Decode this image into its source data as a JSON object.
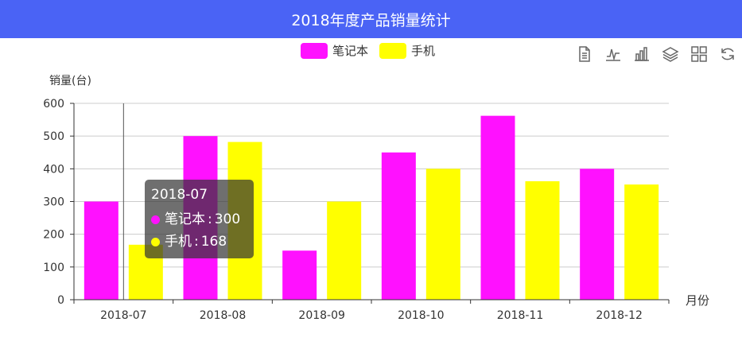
{
  "title": "2018年度产品销量统计",
  "toolbox": {
    "icons": [
      "data-view-icon",
      "line-chart-icon",
      "bar-chart-icon",
      "stack-icon",
      "tiled-icon",
      "restore-icon"
    ]
  },
  "tooltip": {
    "category": "2018-07",
    "rows": [
      {
        "name": "笔记本",
        "value": "300",
        "color": "#ff11ff"
      },
      {
        "name": "手机",
        "value": "168",
        "color": "#ffff00"
      }
    ]
  },
  "chart_data": {
    "type": "bar",
    "title": "2018年度产品销量统计",
    "xlabel": "月份",
    "ylabel": "销量(台)",
    "categories": [
      "2018-07",
      "2018-08",
      "2018-09",
      "2018-10",
      "2018-11",
      "2018-12"
    ],
    "ylim": [
      0,
      600
    ],
    "yticks": [
      0,
      100,
      200,
      300,
      400,
      500,
      600
    ],
    "grid": true,
    "legend_position": "top-center",
    "series": [
      {
        "name": "笔记本",
        "color": "#ff11ff",
        "values": [
          300,
          500,
          150,
          450,
          562,
          400
        ]
      },
      {
        "name": "手机",
        "color": "#ffff00",
        "values": [
          168,
          482,
          300,
          400,
          362,
          352
        ]
      }
    ]
  }
}
